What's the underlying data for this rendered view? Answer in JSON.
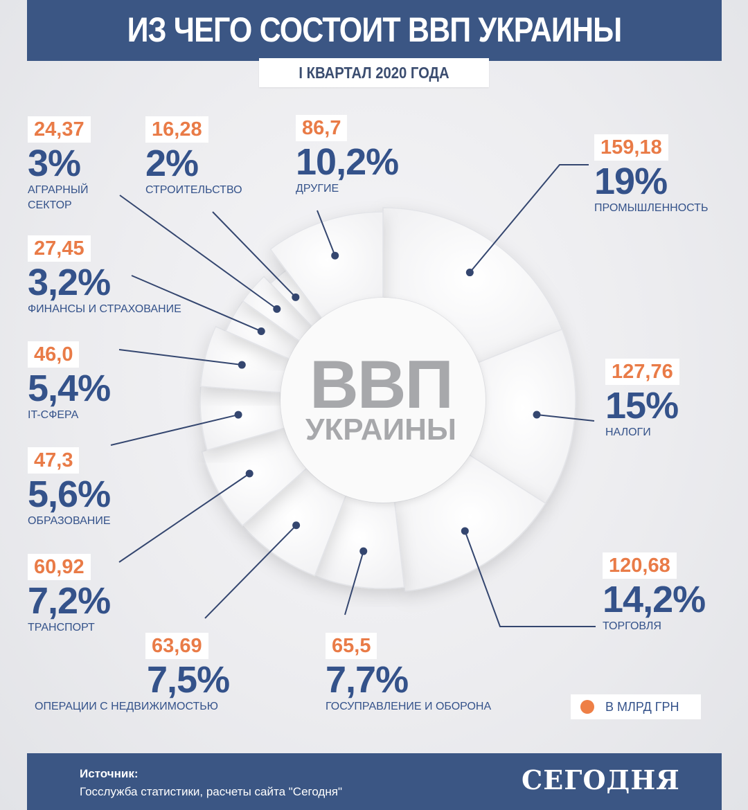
{
  "header": {
    "title": "ИЗ ЧЕГО СОСТОИТ ВВП УКРАИНЫ",
    "subtitle": "I КВАРТАЛ 2020 ГОДА"
  },
  "center": {
    "line1": "ВВП",
    "line2": "УКРАИНЫ"
  },
  "legend": {
    "label": "В МЛРД ГРН",
    "color": "#ee7f46"
  },
  "footer": {
    "source_label": "Источник:",
    "source_text": "Госслужба статистики, расчеты сайта \"Сегодня\"",
    "brand": "СЕГОДНЯ"
  },
  "colors": {
    "brand_blue": "#3b5684",
    "text_blue": "#34528a",
    "value_orange": "#e97b47",
    "connector": "#34466f"
  },
  "chart_data": {
    "type": "pie",
    "title": "ИЗ ЧЕГО СОСТОИТ ВВП УКРАИНЫ",
    "subtitle": "I КВАРТАЛ 2020 ГОДА",
    "unit_values": "млрд грн",
    "unit_shares": "%",
    "order": "clockwise from top",
    "slices": [
      {
        "key": "industry",
        "name": "Промышленность",
        "value": 159.18,
        "value_label": "159,18",
        "share": 19,
        "share_label": "19%"
      },
      {
        "key": "taxes",
        "name": "Налоги",
        "value": 127.76,
        "value_label": "127,76",
        "share": 15,
        "share_label": "15%"
      },
      {
        "key": "trade",
        "name": "Торговля",
        "value": 120.68,
        "value_label": "120,68",
        "share": 14.2,
        "share_label": "14,2%"
      },
      {
        "key": "government",
        "name": "Госуправление и оборона",
        "value": 65.5,
        "value_label": "65,5",
        "share": 7.7,
        "share_label": "7,7%"
      },
      {
        "key": "real-estate",
        "name": "Операции с недвижимостью",
        "value": 63.69,
        "value_label": "63,69",
        "share": 7.5,
        "share_label": "7,5%"
      },
      {
        "key": "transport",
        "name": "Транспорт",
        "value": 60.92,
        "value_label": "60,92",
        "share": 7.2,
        "share_label": "7,2%"
      },
      {
        "key": "education",
        "name": "Образование",
        "value": 47.3,
        "value_label": "47,3",
        "share": 5.6,
        "share_label": "5,6%"
      },
      {
        "key": "it",
        "name": "IT-сфера",
        "value": 46.0,
        "value_label": "46,0",
        "share": 5.4,
        "share_label": "5,4%"
      },
      {
        "key": "finance",
        "name": "Финансы и страхование",
        "value": 27.45,
        "value_label": "27,45",
        "share": 3.2,
        "share_label": "3,2%"
      },
      {
        "key": "agro",
        "name": "Аграрный сектор",
        "value": 24.37,
        "value_label": "24,37",
        "share": 3,
        "share_label": "3%"
      },
      {
        "key": "construction",
        "name": "Строительство",
        "value": 16.28,
        "value_label": "16,28",
        "share": 2,
        "share_label": "2%"
      },
      {
        "key": "other",
        "name": "Другие",
        "value": 86.7,
        "value_label": "86,7",
        "share": 10.2,
        "share_label": "10,2%"
      }
    ]
  }
}
